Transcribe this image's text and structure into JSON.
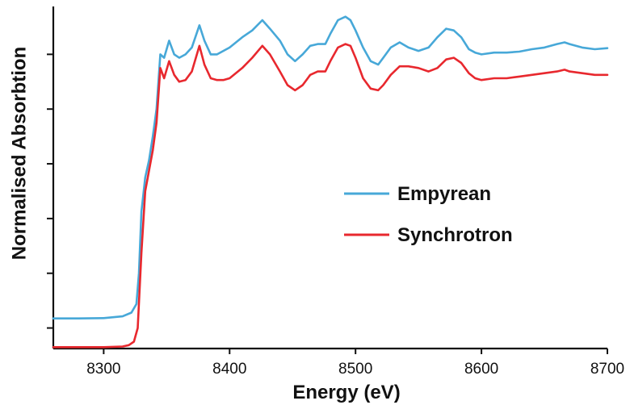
{
  "chart_data": {
    "type": "line",
    "title": "",
    "xlabel": "Energy (eV)",
    "ylabel": "Normalised Absorbtion",
    "xlim": [
      8260,
      8700
    ],
    "ylim": [
      0,
      1
    ],
    "x_ticks": [
      8300,
      8400,
      8500,
      8600,
      8700
    ],
    "y_ticks": [
      0.06,
      0.22,
      0.38,
      0.54,
      0.7,
      0.86
    ],
    "y_tick_labels_visible": false,
    "grid": false,
    "legend_position": "center-right",
    "series": [
      {
        "name": "Empyrean",
        "color": "#47a8d8",
        "x": [
          8260,
          8280,
          8300,
          8315,
          8322,
          8326,
          8328,
          8330,
          8333,
          8336,
          8339,
          8342,
          8345,
          8348,
          8352,
          8356,
          8360,
          8365,
          8370,
          8376,
          8380,
          8385,
          8390,
          8395,
          8400,
          8410,
          8418,
          8426,
          8432,
          8440,
          8446,
          8452,
          8458,
          8464,
          8470,
          8476,
          8480,
          8486,
          8492,
          8496,
          8500,
          8506,
          8512,
          8518,
          8522,
          8528,
          8535,
          8542,
          8550,
          8558,
          8565,
          8572,
          8578,
          8584,
          8590,
          8595,
          8600,
          8610,
          8620,
          8630,
          8640,
          8650,
          8660,
          8666,
          8670,
          8680,
          8690,
          8700
        ],
        "y": [
          0.088,
          0.088,
          0.089,
          0.094,
          0.105,
          0.13,
          0.22,
          0.4,
          0.5,
          0.55,
          0.62,
          0.7,
          0.86,
          0.85,
          0.9,
          0.86,
          0.85,
          0.86,
          0.88,
          0.945,
          0.9,
          0.86,
          0.86,
          0.87,
          0.88,
          0.91,
          0.93,
          0.96,
          0.935,
          0.9,
          0.86,
          0.84,
          0.86,
          0.885,
          0.89,
          0.89,
          0.92,
          0.96,
          0.97,
          0.96,
          0.93,
          0.88,
          0.84,
          0.83,
          0.85,
          0.88,
          0.895,
          0.88,
          0.87,
          0.88,
          0.91,
          0.935,
          0.93,
          0.91,
          0.875,
          0.865,
          0.86,
          0.865,
          0.865,
          0.868,
          0.875,
          0.88,
          0.89,
          0.895,
          0.89,
          0.88,
          0.875,
          0.878
        ]
      },
      {
        "name": "Synchrotron",
        "color": "#e8282e",
        "x": [
          8260,
          8280,
          8300,
          8315,
          8320,
          8324,
          8327,
          8330,
          8333,
          8336,
          8339,
          8342,
          8345,
          8348,
          8352,
          8356,
          8360,
          8365,
          8370,
          8376,
          8380,
          8385,
          8390,
          8395,
          8400,
          8410,
          8418,
          8426,
          8432,
          8440,
          8446,
          8452,
          8458,
          8464,
          8470,
          8476,
          8480,
          8486,
          8492,
          8496,
          8500,
          8506,
          8512,
          8518,
          8522,
          8528,
          8535,
          8542,
          8550,
          8558,
          8565,
          8572,
          8578,
          8584,
          8590,
          8595,
          8600,
          8610,
          8620,
          8630,
          8640,
          8650,
          8660,
          8666,
          8670,
          8680,
          8690,
          8700
        ],
        "y": [
          0.004,
          0.004,
          0.004,
          0.006,
          0.01,
          0.02,
          0.06,
          0.28,
          0.46,
          0.52,
          0.58,
          0.66,
          0.82,
          0.79,
          0.84,
          0.8,
          0.78,
          0.785,
          0.81,
          0.885,
          0.83,
          0.79,
          0.785,
          0.785,
          0.79,
          0.82,
          0.85,
          0.885,
          0.86,
          0.81,
          0.77,
          0.755,
          0.77,
          0.8,
          0.81,
          0.81,
          0.84,
          0.88,
          0.89,
          0.885,
          0.85,
          0.79,
          0.76,
          0.755,
          0.77,
          0.8,
          0.825,
          0.825,
          0.82,
          0.81,
          0.82,
          0.845,
          0.85,
          0.835,
          0.805,
          0.79,
          0.785,
          0.79,
          0.79,
          0.795,
          0.8,
          0.805,
          0.81,
          0.815,
          0.81,
          0.805,
          0.8,
          0.8
        ]
      }
    ]
  }
}
